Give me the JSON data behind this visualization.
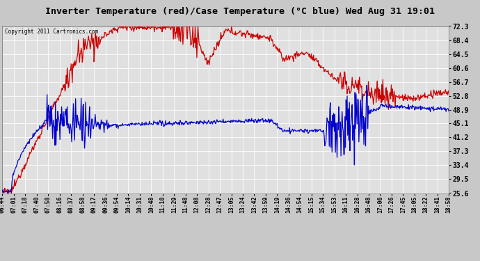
{
  "title": "Inverter Temperature (red)/Case Temperature (°C blue) Wed Aug 31 19:01",
  "copyright": "Copyright 2011 Cartronics.com",
  "yticks": [
    25.6,
    29.5,
    33.4,
    37.3,
    41.2,
    45.1,
    48.9,
    52.8,
    56.7,
    60.6,
    64.5,
    68.4,
    72.3
  ],
  "ylim": [
    25.6,
    72.3
  ],
  "x_labels": [
    "06:44",
    "07:01",
    "07:18",
    "07:40",
    "07:58",
    "08:16",
    "08:37",
    "08:58",
    "09:17",
    "09:36",
    "09:54",
    "10:14",
    "10:31",
    "10:48",
    "11:10",
    "11:29",
    "11:48",
    "12:08",
    "12:28",
    "12:47",
    "13:05",
    "13:24",
    "13:42",
    "13:59",
    "14:19",
    "14:36",
    "14:54",
    "15:15",
    "15:34",
    "15:53",
    "16:11",
    "16:28",
    "16:48",
    "17:06",
    "17:26",
    "17:45",
    "18:05",
    "18:22",
    "18:41",
    "18:58"
  ],
  "bg_color": "#e0e0e0",
  "grid_color": "#ffffff",
  "red_color": "#cc0000",
  "blue_color": "#0000cc",
  "title_bg": "#c8c8c8",
  "outer_bg": "#c8c8c8"
}
